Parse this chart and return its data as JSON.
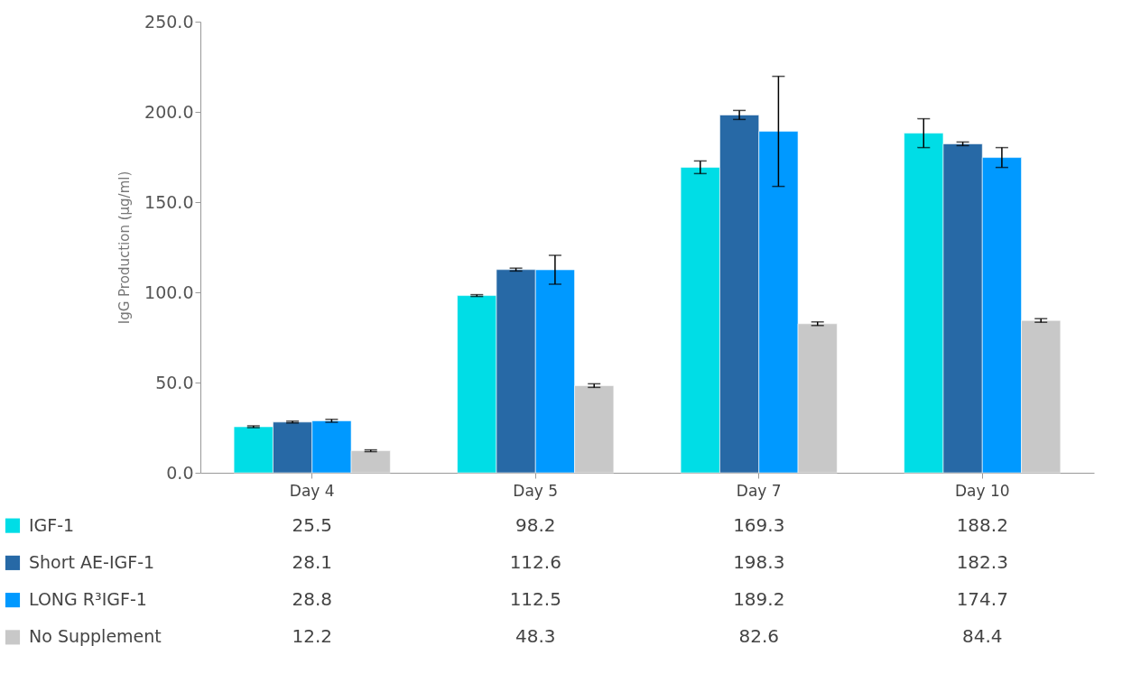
{
  "chart_data": {
    "type": "bar",
    "ylabel": "IgG Production (µg/ml)",
    "categories": [
      "Day 4",
      "Day 5",
      "Day 7",
      "Day 10"
    ],
    "series": [
      {
        "name": "IGF-1",
        "color": "#00dde6",
        "values": [
          25.5,
          98.2,
          169.3,
          188.2
        ],
        "errors": [
          0.5,
          0.5,
          3.5,
          8
        ]
      },
      {
        "name": "Short AE-IGF-1",
        "color": "#2769a6",
        "values": [
          28.1,
          112.6,
          198.3,
          182.3
        ],
        "errors": [
          0.5,
          0.8,
          2.5,
          1
        ]
      },
      {
        "name": "LONG R³IGF-1",
        "color": "#0099ff",
        "values": [
          28.8,
          112.5,
          189.2,
          174.7
        ],
        "errors": [
          0.8,
          8,
          30.5,
          5.5
        ]
      },
      {
        "name": "No Supplement",
        "color": "#c8c8c8",
        "values": [
          12.2,
          48.3,
          82.6,
          84.4
        ],
        "errors": [
          0.5,
          1,
          1,
          1
        ]
      }
    ],
    "ylim": [
      0,
      250
    ],
    "yticks": [
      {
        "value": 0,
        "label": "0.0"
      },
      {
        "value": 50,
        "label": "50.0"
      },
      {
        "value": 100,
        "label": "100.0"
      },
      {
        "value": 150,
        "label": "150.0"
      },
      {
        "value": 200,
        "label": "200.0"
      },
      {
        "value": 250,
        "label": "250.0"
      }
    ],
    "grid": false,
    "legend": "bottom",
    "data_labels": true
  }
}
